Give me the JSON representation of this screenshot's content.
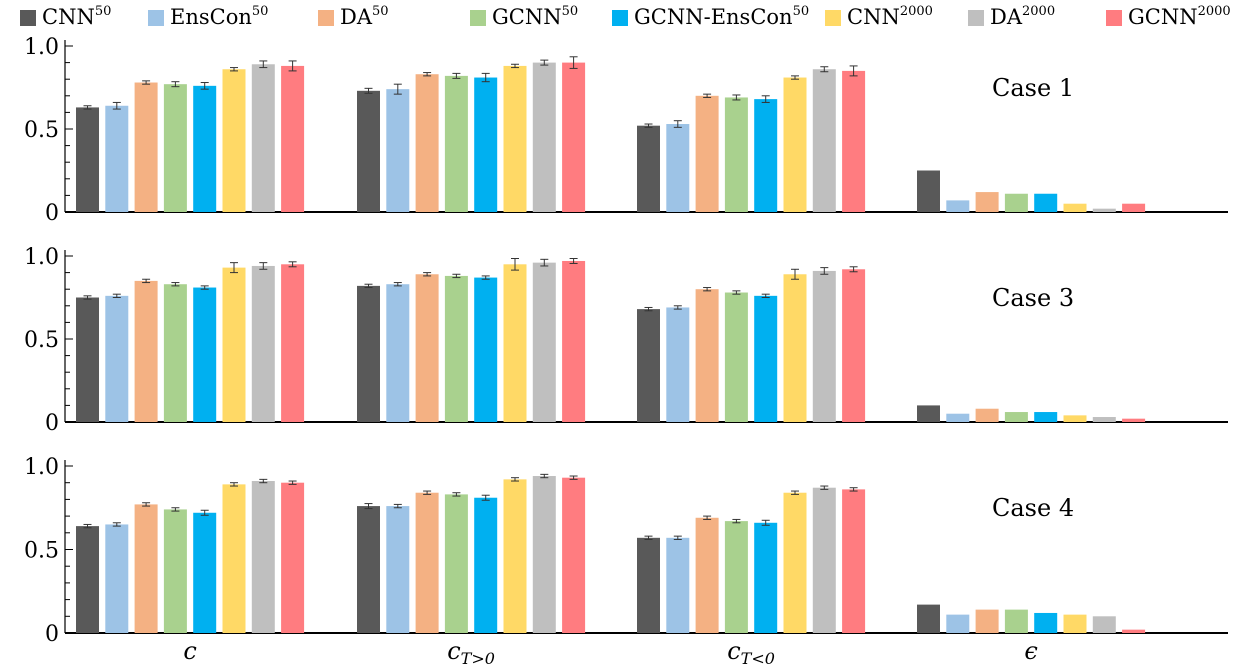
{
  "chart_data": {
    "type": "bar",
    "categories": [
      "c",
      "c_{T>0}",
      "c_{T<0}",
      "ϵ"
    ],
    "category_labels": [
      {
        "base": "c",
        "sub": ""
      },
      {
        "base": "c",
        "sub": "T>0"
      },
      {
        "base": "c",
        "sub": "T<0"
      },
      {
        "base": "ϵ",
        "sub": ""
      }
    ],
    "legend": [
      {
        "base": "CNN",
        "sup": "50",
        "color": "#595959"
      },
      {
        "base": "EnsCon",
        "sup": "50",
        "color": "#9dc3e6"
      },
      {
        "base": "DA",
        "sup": "50",
        "color": "#f4b183"
      },
      {
        "base": "GCNN",
        "sup": "50",
        "color": "#a9d18e"
      },
      {
        "base": "GCNN-EnsCon",
        "sup": "50",
        "color": "#00b0f0"
      },
      {
        "base": "CNN",
        "sup": "2000",
        "color": "#ffd966"
      },
      {
        "base": "DA",
        "sup": "2000",
        "color": "#bfbfbf"
      },
      {
        "base": "GCNN",
        "sup": "2000",
        "color": "#ff7c80"
      }
    ],
    "legend_placement": "top",
    "ylim": [
      0,
      1.0
    ],
    "yticks": [
      0,
      0.5,
      1.0
    ],
    "ytick_labels": [
      "0",
      "0.5",
      "1.0"
    ],
    "grid": false,
    "panels": [
      {
        "label": "Case 1",
        "values": [
          [
            0.63,
            0.64,
            0.78,
            0.77,
            0.76,
            0.86,
            0.89,
            0.88
          ],
          [
            0.73,
            0.74,
            0.83,
            0.82,
            0.81,
            0.88,
            0.9,
            0.9
          ],
          [
            0.52,
            0.53,
            0.7,
            0.69,
            0.68,
            0.81,
            0.86,
            0.85
          ],
          [
            0.25,
            0.07,
            0.12,
            0.11,
            0.11,
            0.05,
            0.02,
            0.05
          ]
        ],
        "errors": [
          [
            0.01,
            0.02,
            0.01,
            0.015,
            0.02,
            0.01,
            0.02,
            0.03
          ],
          [
            0.015,
            0.03,
            0.01,
            0.015,
            0.025,
            0.01,
            0.015,
            0.035
          ],
          [
            0.01,
            0.02,
            0.01,
            0.015,
            0.02,
            0.01,
            0.015,
            0.03
          ],
          [
            0,
            0,
            0,
            0,
            0,
            0,
            0,
            0
          ]
        ]
      },
      {
        "label": "Case 3",
        "values": [
          [
            0.75,
            0.76,
            0.85,
            0.83,
            0.81,
            0.93,
            0.94,
            0.95
          ],
          [
            0.82,
            0.83,
            0.89,
            0.88,
            0.87,
            0.95,
            0.96,
            0.97
          ],
          [
            0.68,
            0.69,
            0.8,
            0.78,
            0.76,
            0.89,
            0.91,
            0.92
          ],
          [
            0.1,
            0.05,
            0.08,
            0.06,
            0.06,
            0.04,
            0.03,
            0.02
          ]
        ],
        "errors": [
          [
            0.01,
            0.01,
            0.01,
            0.01,
            0.01,
            0.03,
            0.02,
            0.015
          ],
          [
            0.01,
            0.01,
            0.01,
            0.01,
            0.01,
            0.035,
            0.02,
            0.015
          ],
          [
            0.01,
            0.01,
            0.01,
            0.01,
            0.01,
            0.03,
            0.02,
            0.015
          ],
          [
            0,
            0,
            0,
            0,
            0,
            0,
            0,
            0
          ]
        ]
      },
      {
        "label": "Case 4",
        "values": [
          [
            0.64,
            0.65,
            0.77,
            0.74,
            0.72,
            0.89,
            0.91,
            0.9
          ],
          [
            0.76,
            0.76,
            0.84,
            0.83,
            0.81,
            0.92,
            0.94,
            0.93
          ],
          [
            0.57,
            0.57,
            0.69,
            0.67,
            0.66,
            0.84,
            0.87,
            0.86
          ],
          [
            0.17,
            0.11,
            0.14,
            0.14,
            0.12,
            0.11,
            0.1,
            0.02
          ]
        ],
        "errors": [
          [
            0.01,
            0.01,
            0.01,
            0.01,
            0.015,
            0.01,
            0.01,
            0.01
          ],
          [
            0.015,
            0.01,
            0.01,
            0.01,
            0.015,
            0.01,
            0.01,
            0.01
          ],
          [
            0.01,
            0.01,
            0.01,
            0.01,
            0.015,
            0.01,
            0.01,
            0.01
          ],
          [
            0,
            0,
            0,
            0,
            0,
            0,
            0,
            0
          ]
        ]
      }
    ]
  }
}
